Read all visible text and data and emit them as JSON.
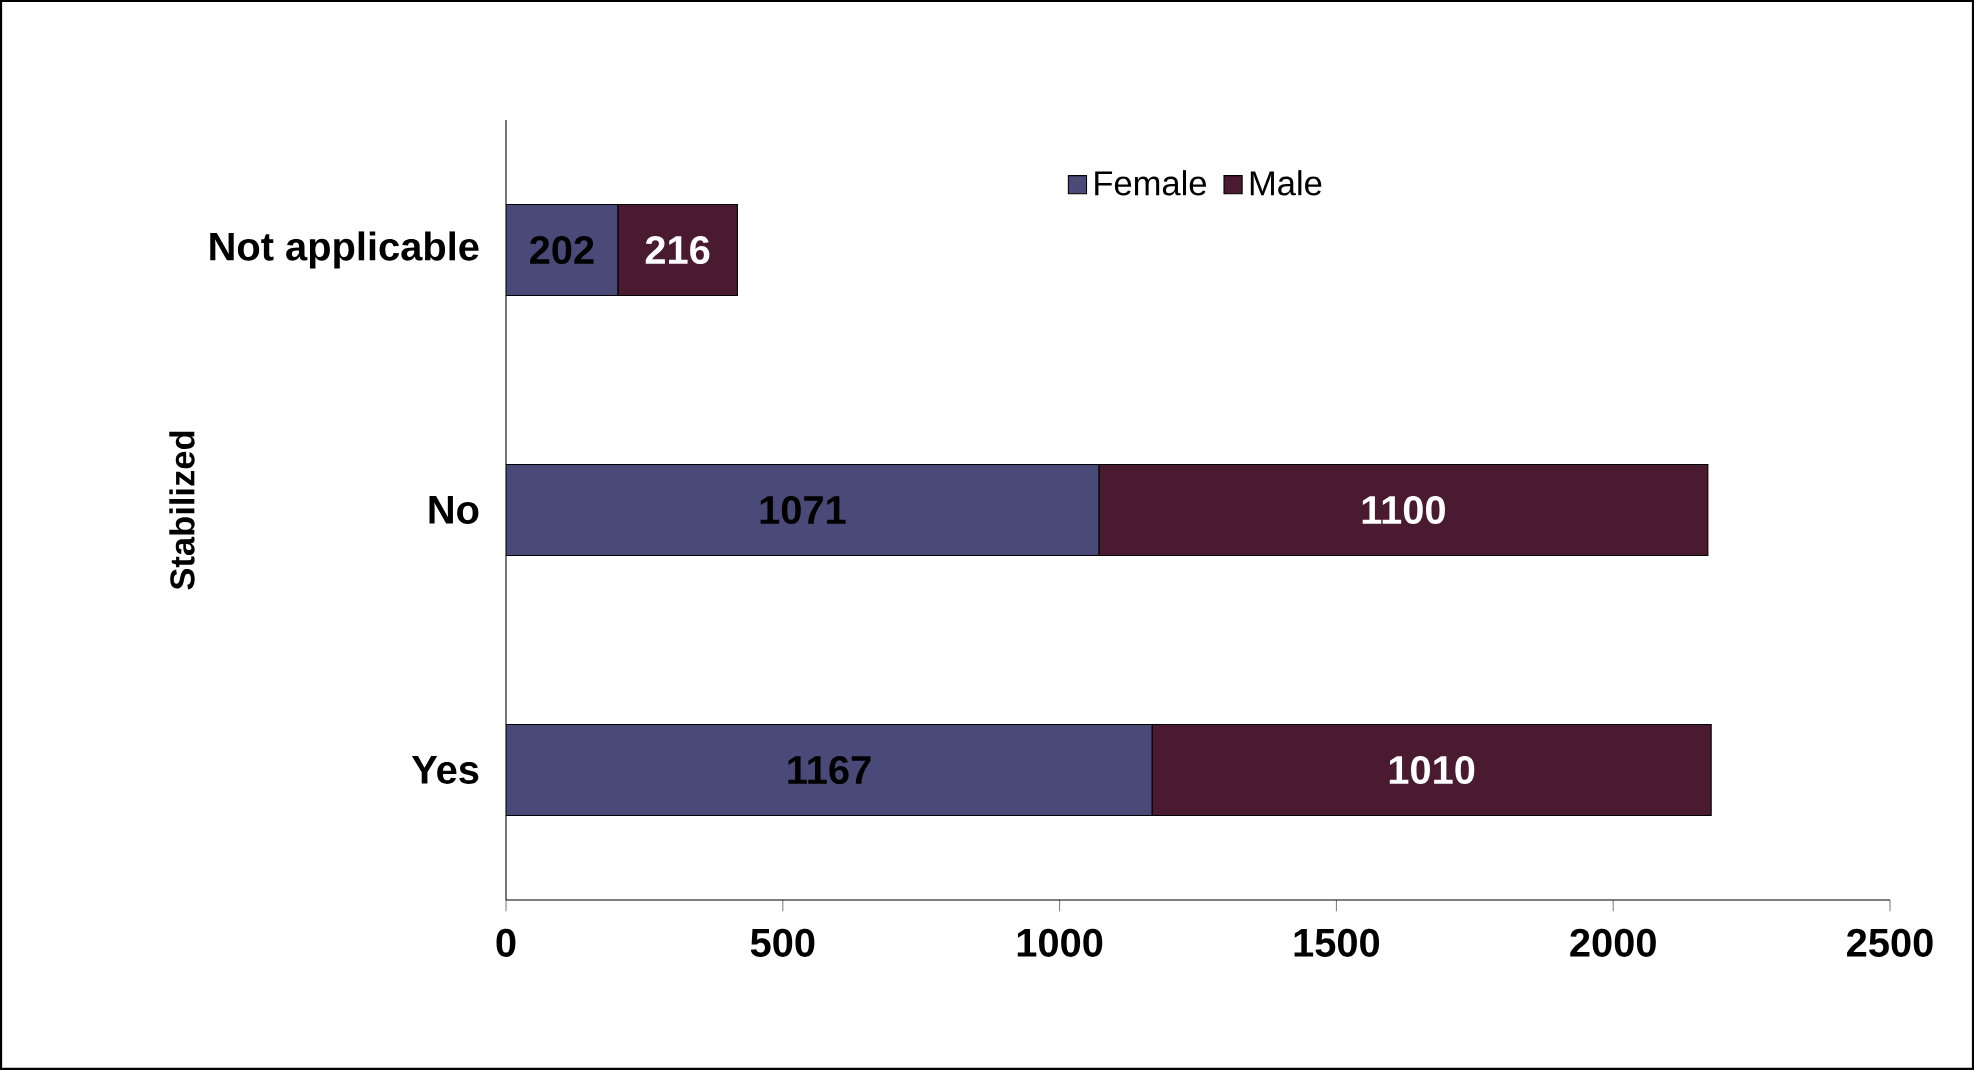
{
  "chart_data": {
    "type": "bar",
    "orientation": "horizontal",
    "stacked": true,
    "ylabel": "Stabilized",
    "categories": [
      "Not applicable",
      "No",
      "Yes"
    ],
    "series": [
      {
        "name": "Female",
        "color": "#4a4a78",
        "values": [
          202,
          1071,
          1167
        ]
      },
      {
        "name": "Male",
        "color": "#4a1a30",
        "values": [
          216,
          1100,
          1010
        ]
      }
    ],
    "xlim": [
      0,
      2500
    ],
    "xticks": [
      0,
      500,
      1000,
      1500,
      2000,
      2500
    ],
    "data_labels": true,
    "grid": false,
    "legend": "top"
  }
}
